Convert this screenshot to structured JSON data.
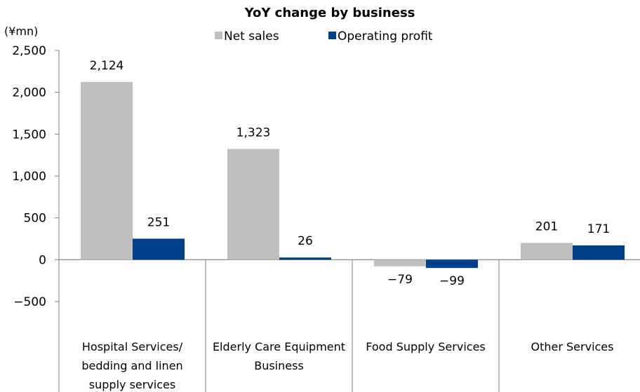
{
  "chart_data": {
    "type": "bar",
    "title": "YoY change by business",
    "unit_label": "(¥mn)",
    "categories": [
      [
        "Hospital Services/",
        "bedding and linen",
        "supply services"
      ],
      [
        "Elderly Care Equipment",
        "Business"
      ],
      [
        "Food Supply Services"
      ],
      [
        "Other Services"
      ]
    ],
    "series": [
      {
        "name": "Net sales",
        "values": [
          2124,
          1323,
          -79,
          201
        ],
        "labels": [
          "2,124",
          "1,323",
          "−79",
          "201"
        ],
        "color": "#bfbfbf"
      },
      {
        "name": "Operating profit",
        "values": [
          251,
          26,
          -99,
          171
        ],
        "labels": [
          "251",
          "26",
          "−99",
          "171"
        ],
        "color": "#003f8a"
      }
    ],
    "yticks": [
      "2,500",
      "2,000",
      "1,500",
      "1,000",
      "500",
      "0",
      "−500"
    ],
    "ytick_values": [
      2500,
      2000,
      1500,
      1000,
      500,
      0,
      -500
    ],
    "ylim": [
      -500,
      2500
    ],
    "legend_position": "top",
    "grid": false
  }
}
